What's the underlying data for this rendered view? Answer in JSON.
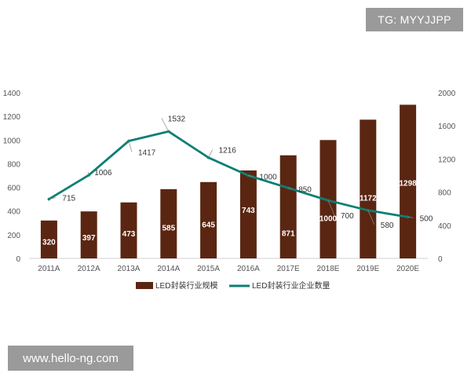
{
  "watermark_tag": "TG: MYYJJPP",
  "watermark_url": "www.hello-ng.com",
  "colors": {
    "bar": "#5a2612",
    "line": "#0d7f74",
    "axis_text": "#555555",
    "label_dark": "#333333",
    "label_light": "#ffffff"
  },
  "chart_data": {
    "type": "bar",
    "categories": [
      "2011A",
      "2012A",
      "2013A",
      "2014A",
      "2015A",
      "2016A",
      "2017E",
      "2018E",
      "2019E",
      "2020E"
    ],
    "series": [
      {
        "name": "LED封装行业规模",
        "type": "bar",
        "axis": "left",
        "values": [
          320,
          397,
          473,
          585,
          645,
          743,
          871,
          1000,
          1172,
          1298
        ]
      },
      {
        "name": "LED封装行业企业数量",
        "type": "line",
        "axis": "right",
        "values": [
          715,
          1006,
          1417,
          1532,
          1216,
          1000,
          850,
          700,
          580,
          500
        ]
      }
    ],
    "ylim_left": [
      0,
      1400
    ],
    "yticks_left": [
      0,
      200,
      400,
      600,
      800,
      1000,
      1200,
      1400
    ],
    "ylim_right": [
      0,
      2000
    ],
    "yticks_right": [
      0,
      400,
      800,
      1200,
      1600,
      2000
    ],
    "grid": false,
    "legend_position": "bottom"
  }
}
